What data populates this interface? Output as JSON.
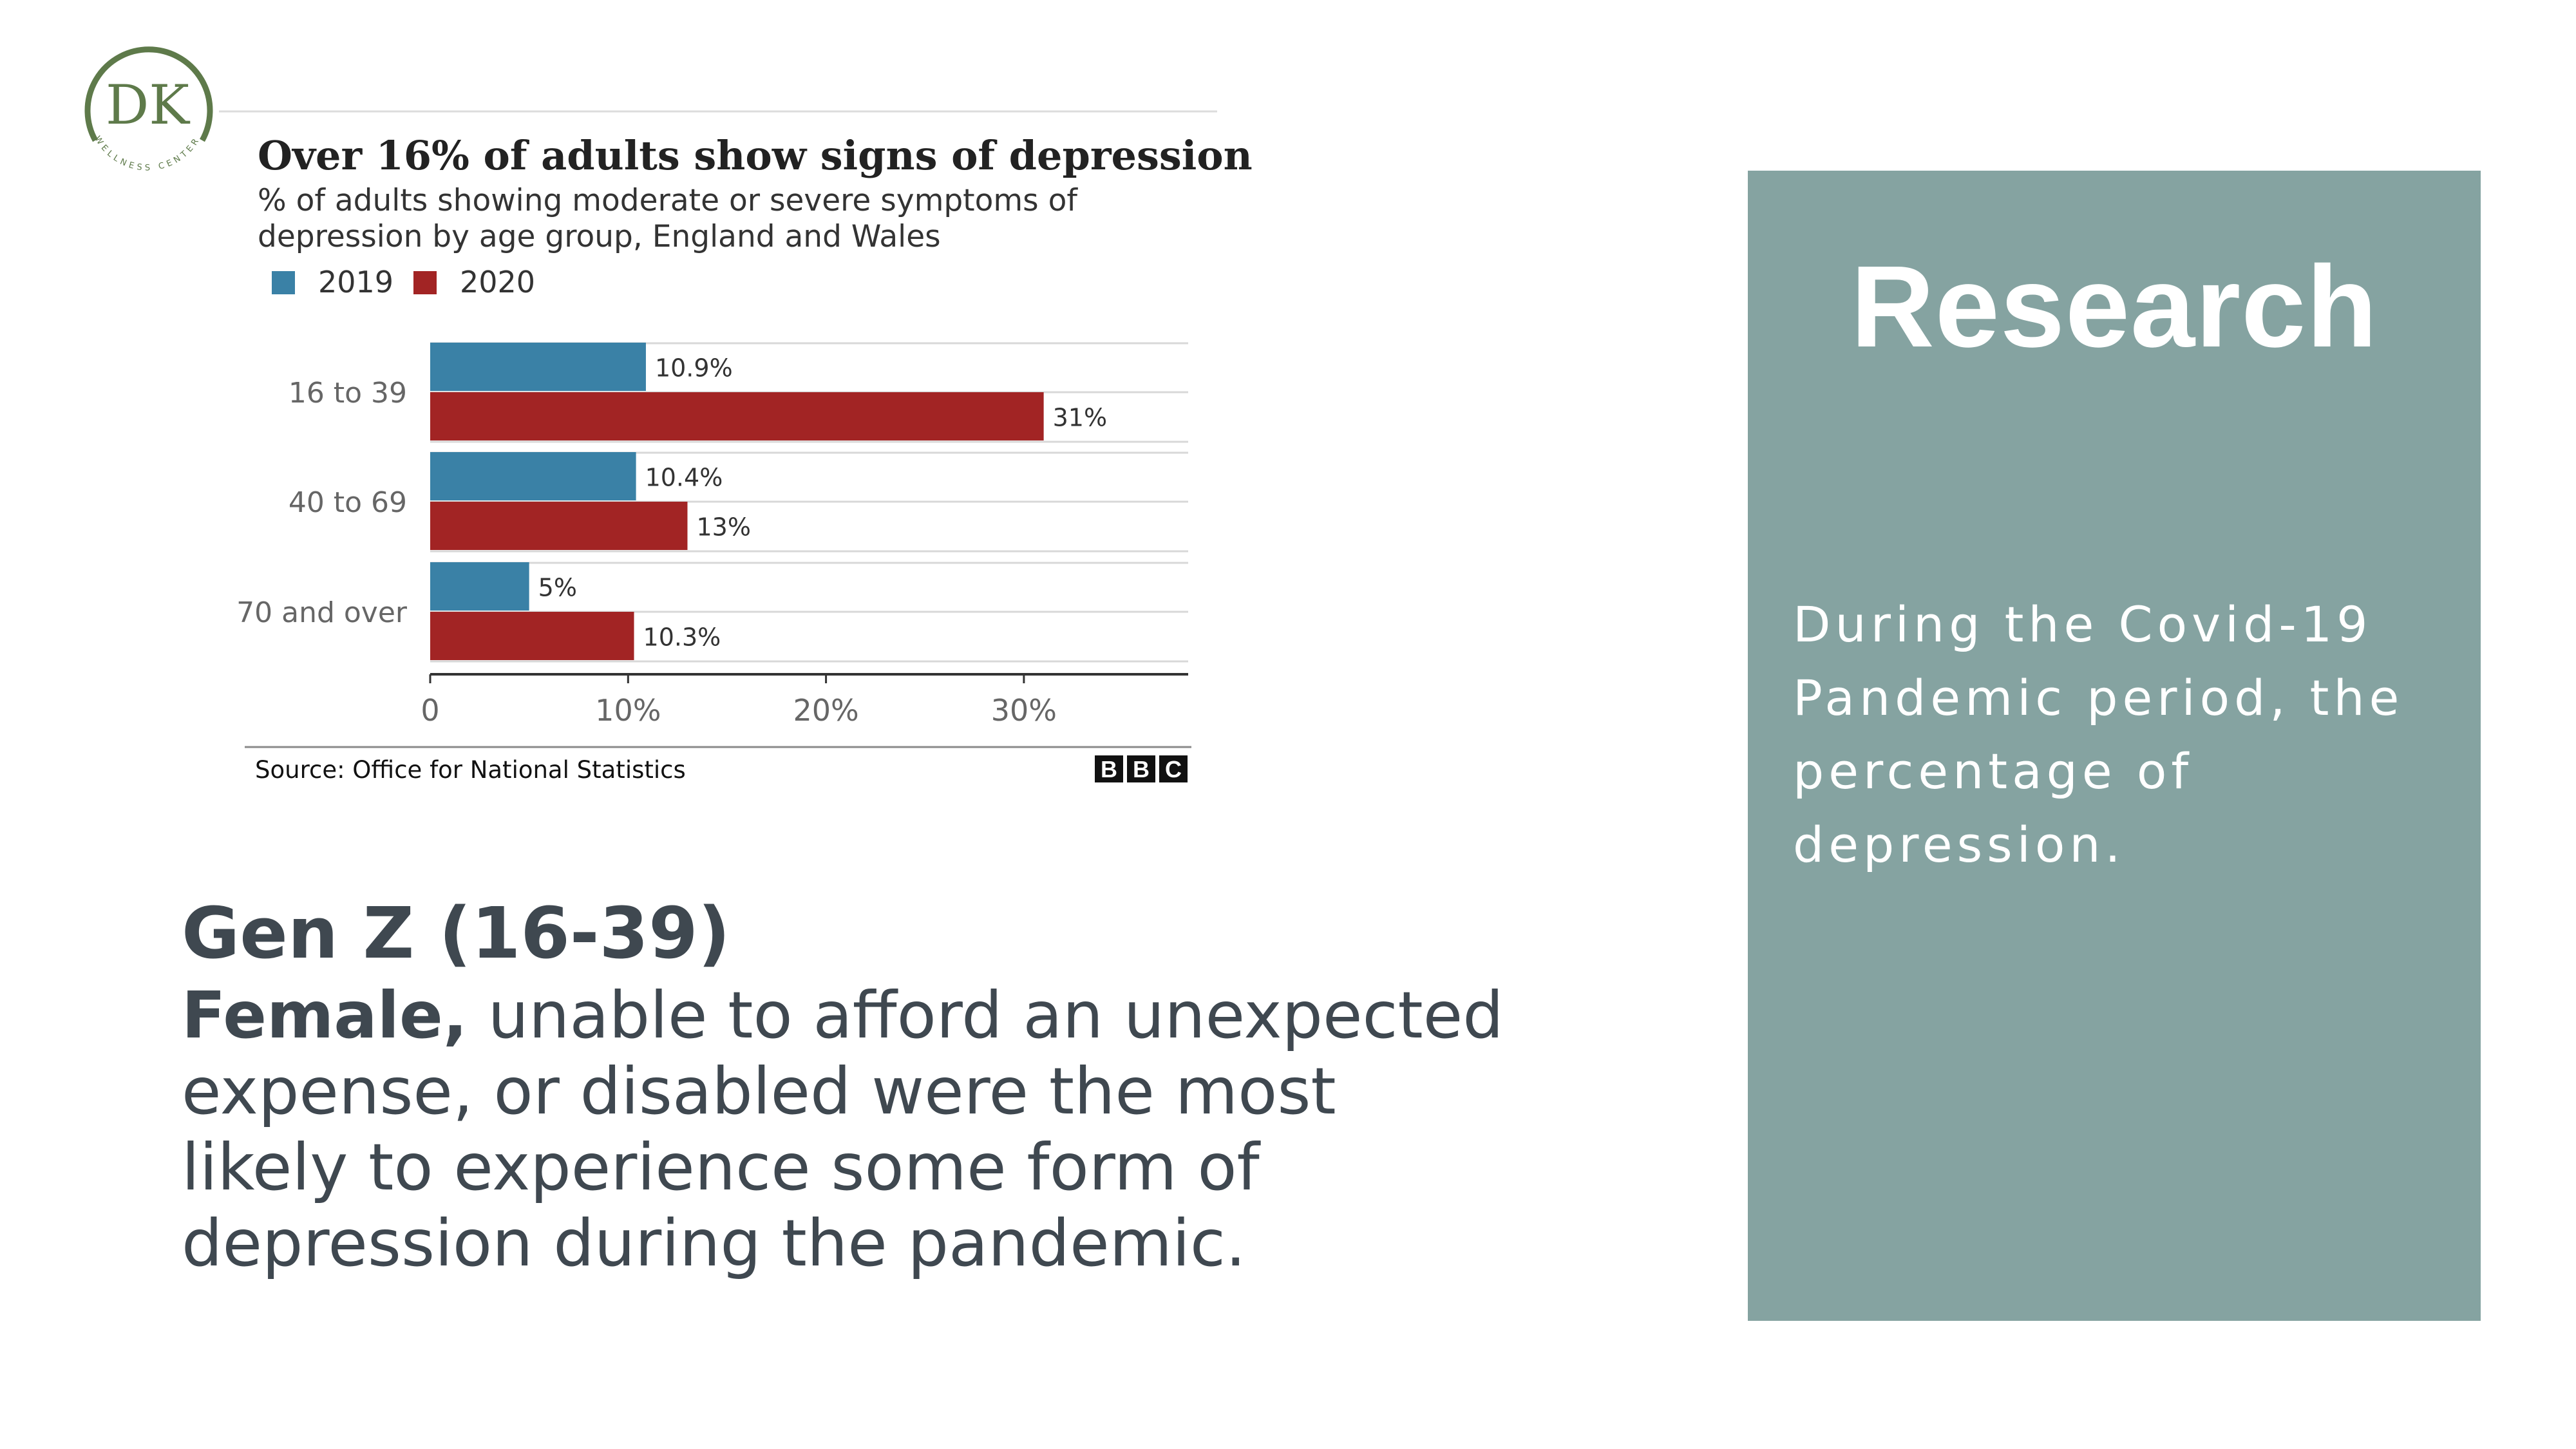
{
  "logo": {
    "initials": "DK",
    "tagline": "WELLNESS CENTER",
    "color": "#5e7a4a"
  },
  "chart_data": {
    "type": "bar",
    "orientation": "horizontal",
    "title": "Over 16% of adults show signs of depression",
    "subtitle": "% of adults showing moderate or severe symptoms of depression by age group, England and Wales",
    "categories": [
      "16 to 39",
      "40 to 69",
      "70 and over"
    ],
    "series": [
      {
        "name": "2019",
        "color": "#3a81a6",
        "values": [
          10.9,
          10.4,
          5
        ],
        "labels": [
          "10.9%",
          "10.4%",
          "5%"
        ]
      },
      {
        "name": "2020",
        "color": "#a22424",
        "values": [
          31,
          13,
          10.3
        ],
        "labels": [
          "31%",
          "13%",
          "10.3%"
        ]
      }
    ],
    "xlim": [
      0,
      37
    ],
    "xticks": [
      0,
      10,
      20,
      30
    ],
    "xtick_labels": [
      "0",
      "10%",
      "20%",
      "30%"
    ],
    "grid": true,
    "legend": "top-left",
    "source": "Source: Office for National Statistics",
    "brand": [
      "B",
      "B",
      "C"
    ]
  },
  "main": {
    "heading": "Gen Z (16-39)",
    "body_bold": "Female,",
    "body_rest": " unable to afford an unexpected expense, or disabled were the most likely to experience some form of depression during the pandemic."
  },
  "panel": {
    "title": "Research",
    "text": "During the Covid-19 Pandemic period, the percentage of depression.",
    "color": "#85a3a1"
  }
}
